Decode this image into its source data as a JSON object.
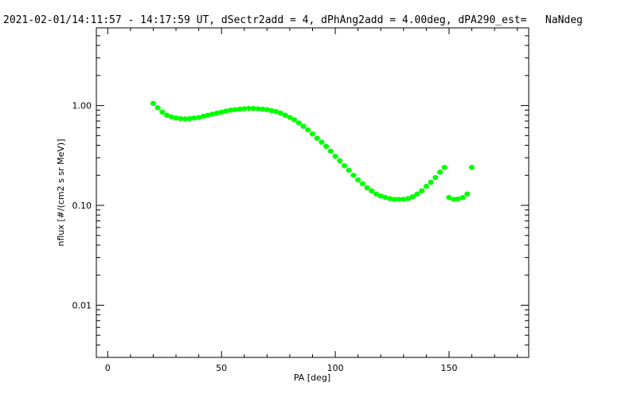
{
  "chart_data": {
    "type": "scatter",
    "title": "2021-02-01/14:11:57 - 14:17:59 UT, dSectr2add = 4, dPhAng2add = 4.00deg, dPA290_est=   NaNdeg",
    "xlabel": "PA [deg]",
    "ylabel": "nflux [#/(cm2 s sr MeV)]",
    "xlim": [
      -5,
      185
    ],
    "ylim": [
      0.003,
      6
    ],
    "yscale": "log",
    "x_ticks": [
      0,
      50,
      100,
      150
    ],
    "x_tick_labels": [
      "0",
      "50",
      "100",
      "150"
    ],
    "y_ticks": [
      0.01,
      0.1,
      1.0
    ],
    "y_tick_labels": [
      "0.01",
      "0.10",
      "1.00"
    ],
    "grid": false,
    "series": [
      {
        "color": "#00ff00",
        "x": [
          20,
          22,
          24,
          26,
          28,
          30,
          32,
          34,
          36,
          38,
          40,
          42,
          44,
          46,
          48,
          50,
          52,
          54,
          56,
          58,
          60,
          62,
          64,
          66,
          68,
          70,
          72,
          74,
          76,
          78,
          80,
          82,
          84,
          86,
          88,
          90,
          92,
          94,
          96,
          98,
          100,
          102,
          104,
          106,
          108,
          110,
          112,
          114,
          116,
          118,
          120,
          122,
          124,
          126,
          128,
          130,
          132,
          134,
          136,
          138,
          140,
          142,
          144,
          146,
          148,
          150,
          152,
          154,
          156,
          158,
          160
        ],
        "y": [
          1.05,
          0.95,
          0.86,
          0.8,
          0.77,
          0.75,
          0.74,
          0.735,
          0.74,
          0.75,
          0.76,
          0.78,
          0.8,
          0.82,
          0.84,
          0.86,
          0.88,
          0.9,
          0.91,
          0.92,
          0.93,
          0.935,
          0.935,
          0.93,
          0.92,
          0.91,
          0.89,
          0.87,
          0.84,
          0.8,
          0.76,
          0.72,
          0.67,
          0.62,
          0.57,
          0.52,
          0.47,
          0.43,
          0.39,
          0.35,
          0.31,
          0.28,
          0.25,
          0.225,
          0.2,
          0.18,
          0.165,
          0.15,
          0.14,
          0.13,
          0.124,
          0.12,
          0.117,
          0.115,
          0.115,
          0.115,
          0.117,
          0.122,
          0.13,
          0.14,
          0.155,
          0.17,
          0.19,
          0.215,
          0.24,
          0.12,
          0.115,
          0.116,
          0.12,
          0.13,
          0.24
        ]
      }
    ]
  }
}
